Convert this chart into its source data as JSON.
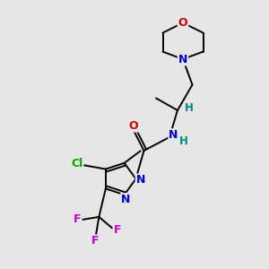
{
  "background_color": "#e6e6e6",
  "atom_colors": {
    "C": "#000000",
    "N": "#0000cc",
    "O": "#cc0000",
    "F": "#cc00cc",
    "Cl": "#00aa00",
    "H": "#008888"
  },
  "bond_color": "#000000",
  "figsize": [
    3.0,
    3.0
  ],
  "dpi": 100
}
